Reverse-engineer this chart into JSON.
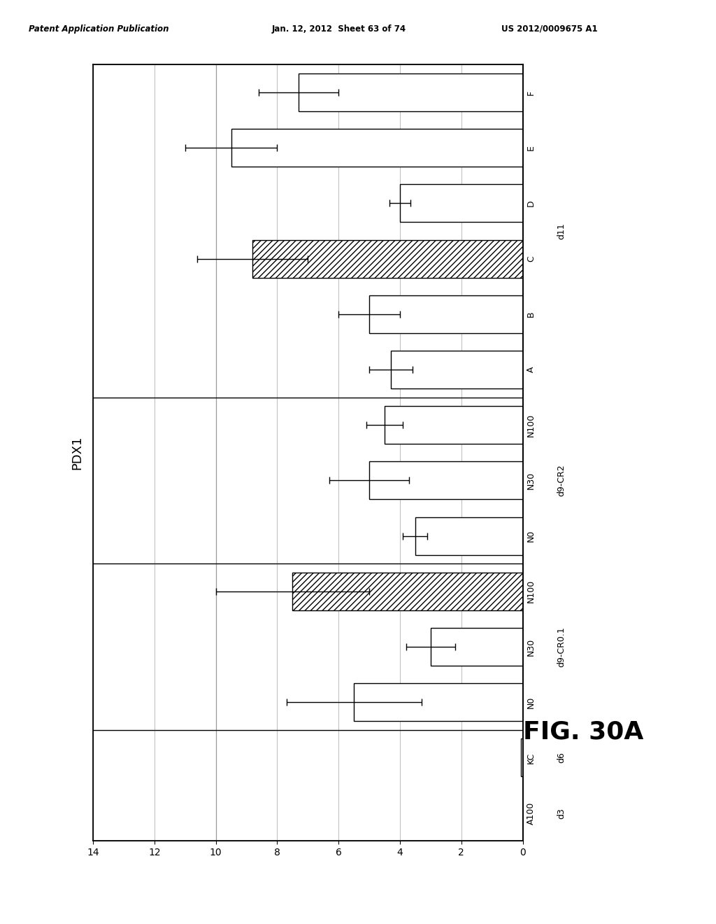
{
  "xlim": [
    0,
    14
  ],
  "xticks": [
    0,
    2,
    4,
    6,
    8,
    10,
    12,
    14
  ],
  "xticklabels": [
    "0",
    "2",
    "4",
    "6",
    "8",
    "10",
    "12",
    "14"
  ],
  "fig_label": "FIG. 30A",
  "patent_header_left": "Patent Application Publication",
  "patent_header_mid": "Jan. 12, 2012  Sheet 63 of 74",
  "patent_header_right": "US 2012/0009675 A1",
  "bars": [
    {
      "label": "A100",
      "group": "d3",
      "value": 0.0,
      "error": 0.0,
      "hatched": false
    },
    {
      "label": "KC",
      "group": "d6",
      "value": 0.05,
      "error": 0.0,
      "hatched": false
    },
    {
      "label": "N0",
      "group": "d9-CR0.1",
      "value": 5.5,
      "error": 2.2,
      "hatched": false
    },
    {
      "label": "N30",
      "group": "d9-CR0.1",
      "value": 3.0,
      "error": 0.8,
      "hatched": false
    },
    {
      "label": "N100",
      "group": "d9-CR0.1",
      "value": 7.5,
      "error": 2.5,
      "hatched": true
    },
    {
      "label": "N0",
      "group": "d9-CR2",
      "value": 3.5,
      "error": 0.4,
      "hatched": false
    },
    {
      "label": "N30",
      "group": "d9-CR2",
      "value": 5.0,
      "error": 1.3,
      "hatched": false
    },
    {
      "label": "N100",
      "group": "d9-CR2",
      "value": 4.5,
      "error": 0.6,
      "hatched": false
    },
    {
      "label": "A",
      "group": "d11",
      "value": 4.3,
      "error": 0.7,
      "hatched": false
    },
    {
      "label": "B",
      "group": "d11",
      "value": 5.0,
      "error": 1.0,
      "hatched": false
    },
    {
      "label": "C",
      "group": "d11",
      "value": 8.8,
      "error": 1.8,
      "hatched": true
    },
    {
      "label": "D",
      "group": "d11",
      "value": 4.0,
      "error": 0.35,
      "hatched": false
    },
    {
      "label": "E",
      "group": "d11",
      "value": 9.5,
      "error": 1.5,
      "hatched": false
    },
    {
      "label": "F",
      "group": "d11",
      "value": 7.3,
      "error": 1.3,
      "hatched": false
    }
  ],
  "group_definitions": [
    {
      "name": "d3",
      "indices": [
        0
      ]
    },
    {
      "name": "d6",
      "indices": [
        1
      ]
    },
    {
      "name": "d9-CR0.1",
      "indices": [
        2,
        3,
        4
      ]
    },
    {
      "name": "d9-CR2",
      "indices": [
        5,
        6,
        7
      ]
    },
    {
      "name": "d11",
      "indices": [
        8,
        9,
        10,
        11,
        12,
        13
      ]
    }
  ],
  "separator_after": [
    1,
    4,
    7
  ],
  "bar_color": "#ffffff",
  "bar_edge_color": "#000000",
  "hatch_pattern": "////",
  "grid_color": "#bbbbbb",
  "grid_linewidth": 0.7,
  "gray_vline_x": 10,
  "ylabel_text": "PDX1"
}
